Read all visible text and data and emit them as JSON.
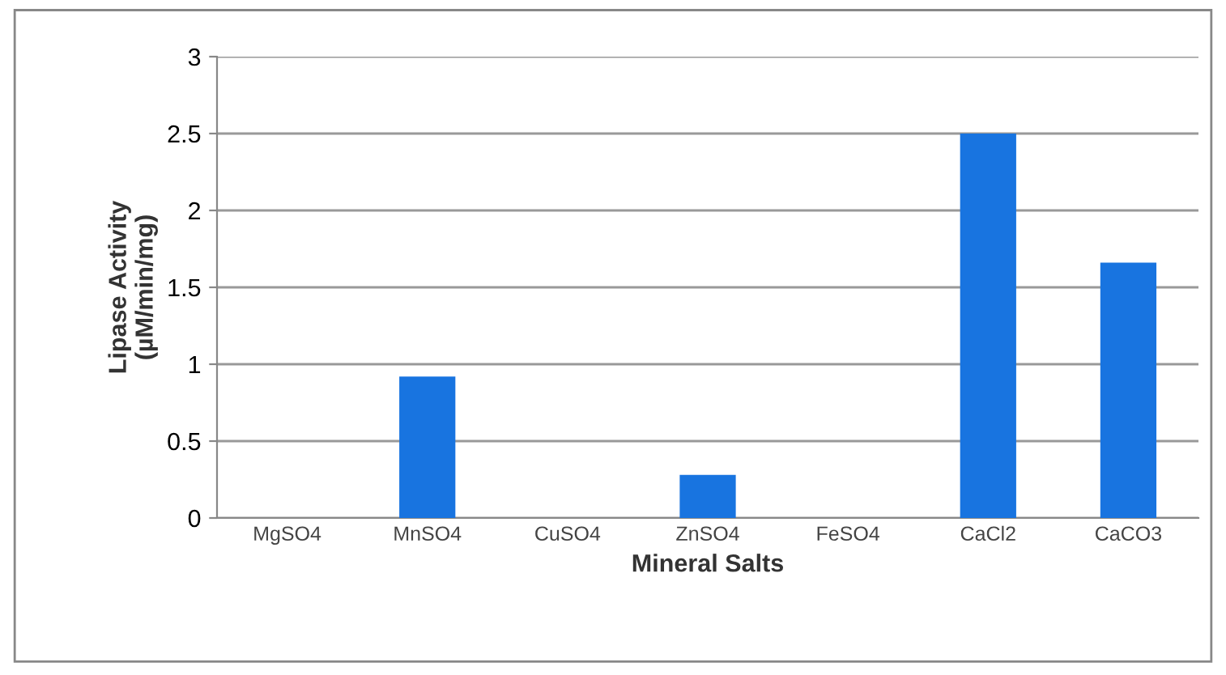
{
  "chart_data": {
    "type": "bar",
    "xlabel": "Mineral Salts",
    "ylabel": "Lipase Activity\n(µM/min/mg)",
    "categories": [
      "MgSO4",
      "MnSO4",
      "CuSO4",
      "ZnSO4",
      "FeSO4",
      "CaCl2",
      "CaCO3"
    ],
    "values": [
      0,
      0.92,
      0,
      0.28,
      0,
      2.5,
      1.66
    ],
    "color": "#1874e0",
    "ylim": [
      0,
      3
    ],
    "yticks": [
      0,
      0.5,
      1,
      1.5,
      2,
      2.5,
      3
    ],
    "grid": "y",
    "legend": false
  }
}
